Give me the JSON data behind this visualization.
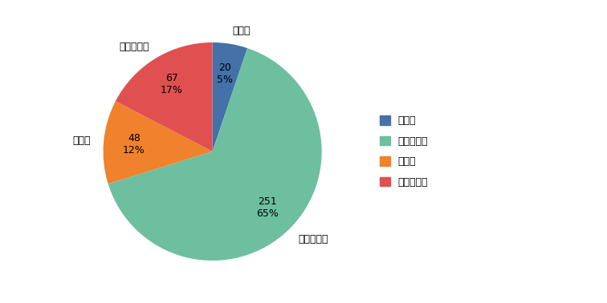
{
  "labels": [
    "増えた",
    "同じぐらい",
    "減った",
    "わからない"
  ],
  "values": [
    20,
    251,
    48,
    67
  ],
  "colors": [
    "#4472a8",
    "#6dbfa0",
    "#f0822d",
    "#e05050"
  ],
  "legend_labels": [
    "増えた",
    "同じぐらい",
    "減った",
    "わからない"
  ],
  "startangle": 90,
  "figsize": [
    7.56,
    3.78
  ],
  "label_fontsize": 9,
  "autopct_fontsize": 9,
  "legend_fontsize": 9
}
